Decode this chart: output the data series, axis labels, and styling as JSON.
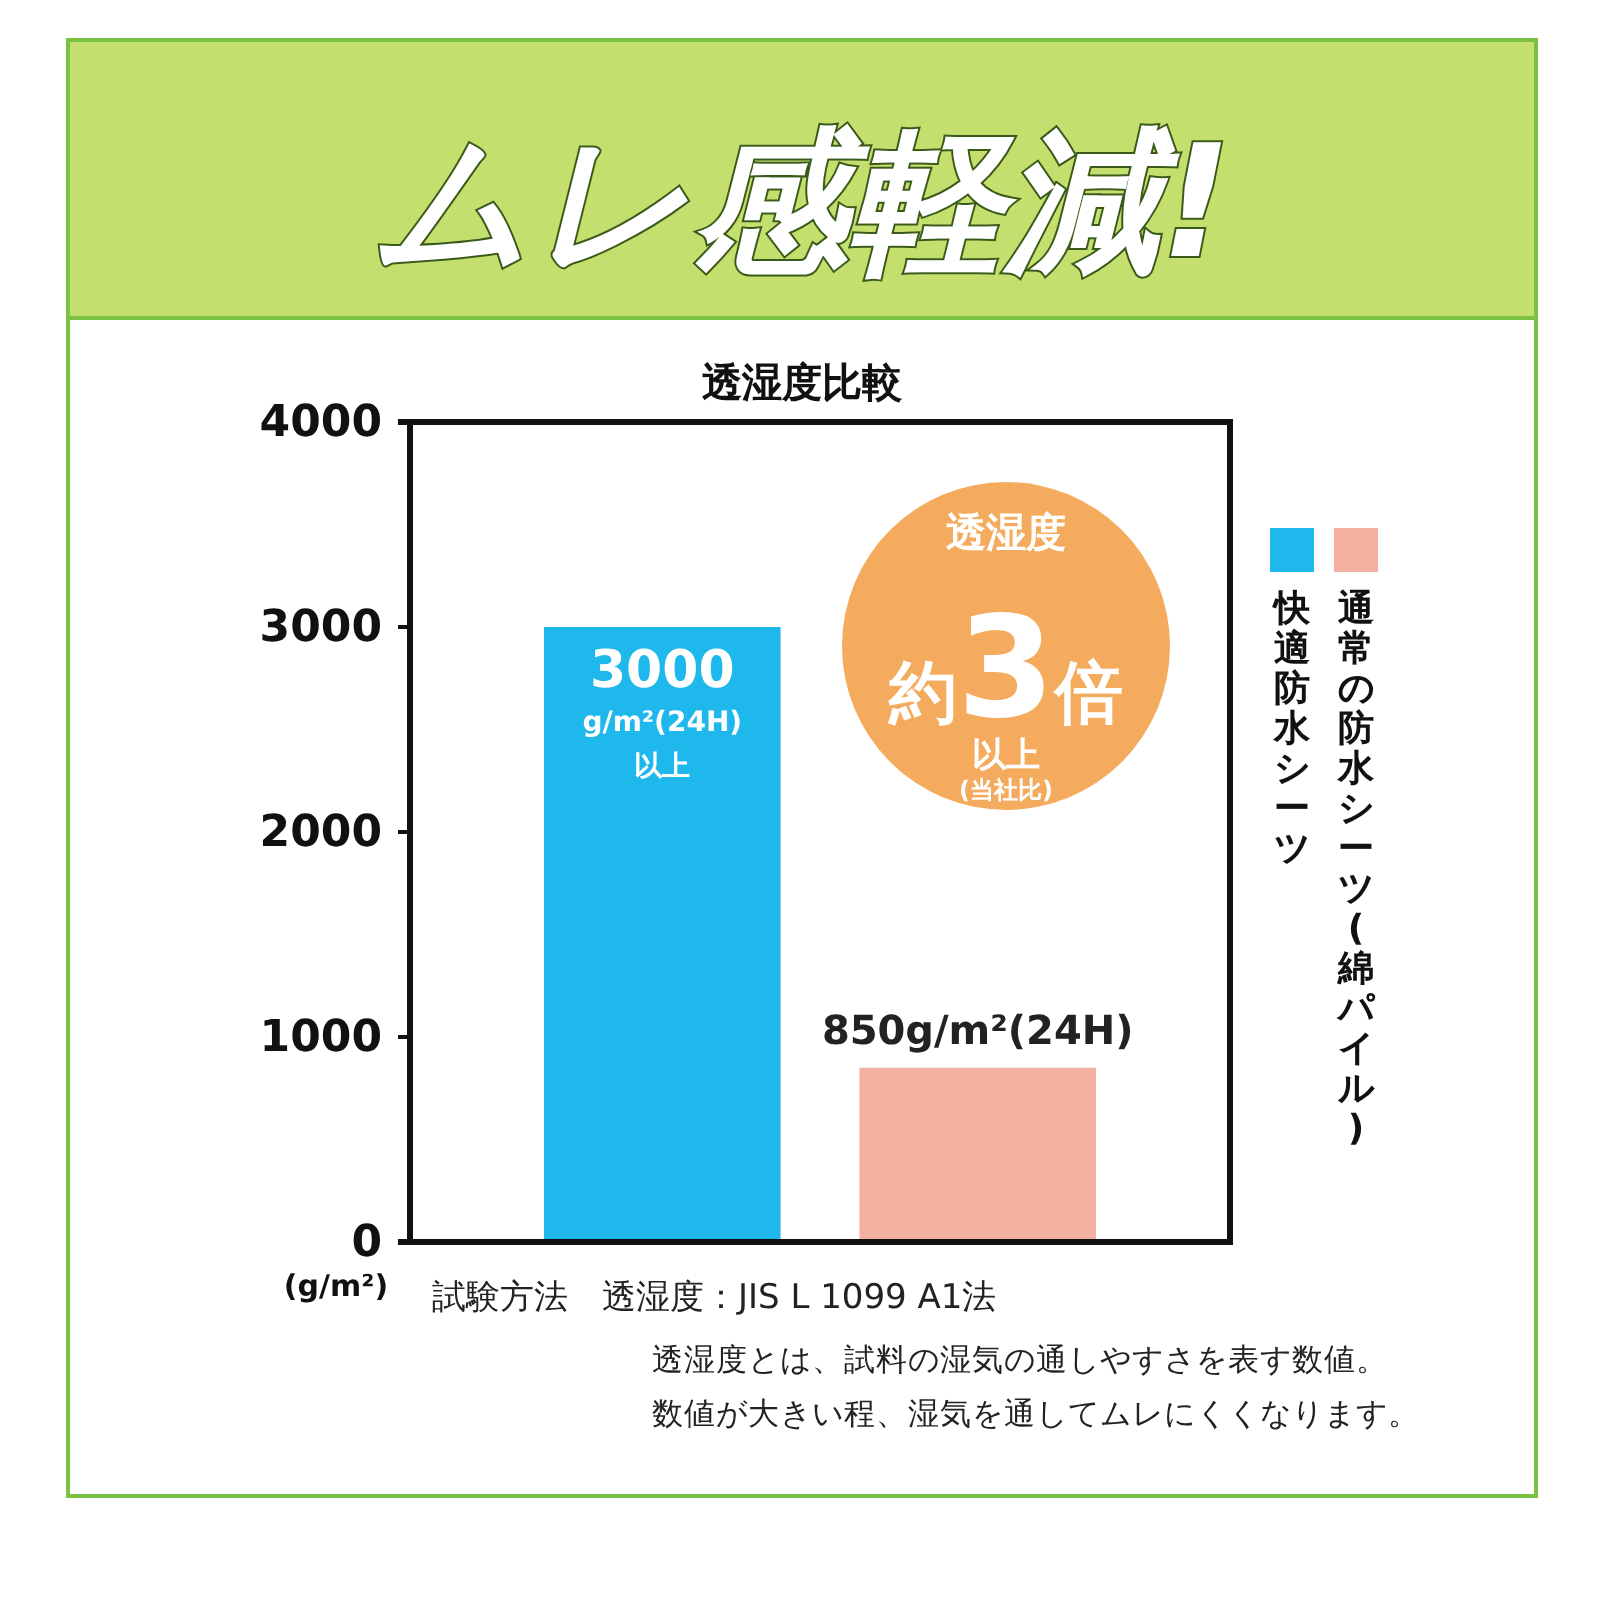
{
  "chart_data": {
    "type": "bar",
    "title": "ムレ感軽減!",
    "subtitle": "透湿度比較",
    "ylabel": "(g/m²)",
    "categories": [
      null,
      null
    ],
    "series": [
      {
        "name": "快適防水シーツ",
        "color": "#1fb8ec",
        "values": [
          3000,
          null
        ],
        "value_labels": [
          "3000\ng/m²(24H)\n以上",
          null
        ]
      },
      {
        "name": "通常の防水シーツ(綿パイル)",
        "color": "#f4b1a2",
        "values": [
          null,
          850
        ],
        "value_labels": [
          null,
          "850g/m²(24H)"
        ]
      }
    ],
    "ylim": [
      0,
      4000
    ],
    "yticks": [
      0,
      1000,
      2000,
      3000,
      4000
    ],
    "grid": false,
    "stacked": true,
    "legend": "right",
    "annotations": [
      "透湿度",
      "約3倍",
      "以上",
      "(当社比)",
      "試験方法　透湿度：JIS L 1099 A1法",
      "透湿度とは、試料の湿気の通しやすさを表す数値。",
      "数値が大きい程、湿気を通してムレにくくなります。"
    ]
  }
}
